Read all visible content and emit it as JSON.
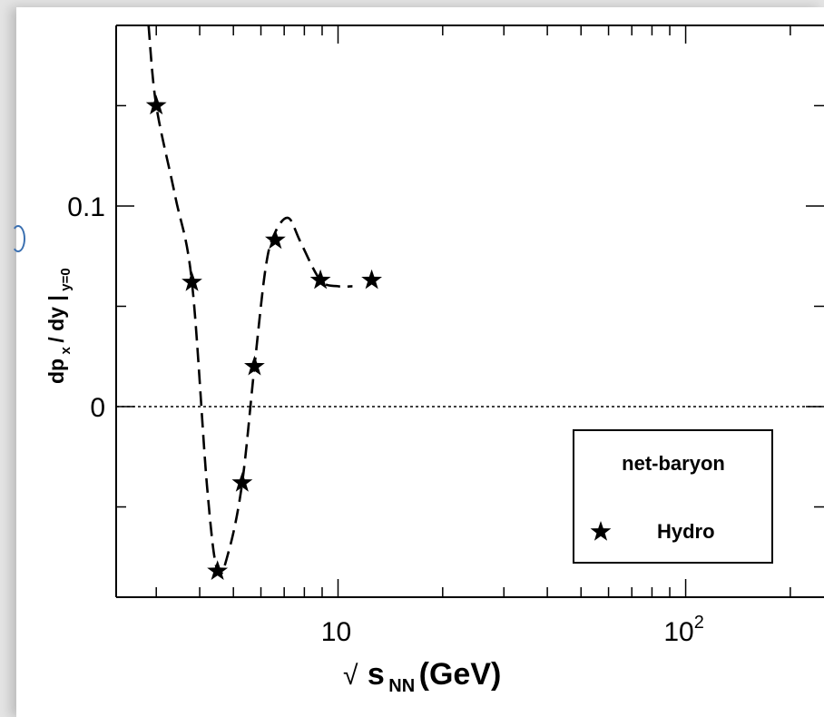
{
  "chart_data": {
    "type": "line",
    "title": "",
    "xscale": "log",
    "xlim": [
      2.3,
      250
    ],
    "ylim": [
      -0.095,
      0.19
    ],
    "xlabel": {
      "prefix": "√",
      "base": "s",
      "sub": "NN",
      "suffix": " (GeV)"
    },
    "ylabel": {
      "p1": "dp",
      "sub1": "x",
      "p2": " / dy |",
      "sub2": "y=0"
    },
    "x_ticks": [
      {
        "value": 10,
        "base": "10",
        "exp": ""
      },
      {
        "value": 100,
        "base": "10",
        "exp": "2"
      }
    ],
    "y_ticks": [
      {
        "value": 0,
        "label": "0"
      },
      {
        "value": 0.1,
        "label": "0.1"
      }
    ],
    "zero_line": true,
    "grid": false,
    "legend": {
      "title": "net-baryon",
      "position": "bottom-right"
    },
    "series": [
      {
        "name": "Hydro",
        "marker": "star",
        "x": [
          3.0,
          3.8,
          4.5,
          5.3,
          5.75,
          6.6,
          8.9,
          12.5
        ],
        "y": [
          0.15,
          0.062,
          -0.082,
          -0.038,
          0.02,
          0.083,
          0.063,
          0.063
        ]
      }
    ],
    "curve": {
      "style": "dashed",
      "x": [
        2.85,
        3.0,
        3.4,
        3.8,
        4.2,
        4.5,
        4.85,
        5.3,
        5.75,
        6.2,
        6.6,
        7.2,
        7.8,
        8.9,
        10.0,
        11.0
      ],
      "y": [
        0.19,
        0.15,
        0.105,
        0.062,
        -0.04,
        -0.082,
        -0.072,
        -0.038,
        0.02,
        0.07,
        0.087,
        0.094,
        0.082,
        0.063,
        0.06,
        0.06
      ]
    }
  }
}
